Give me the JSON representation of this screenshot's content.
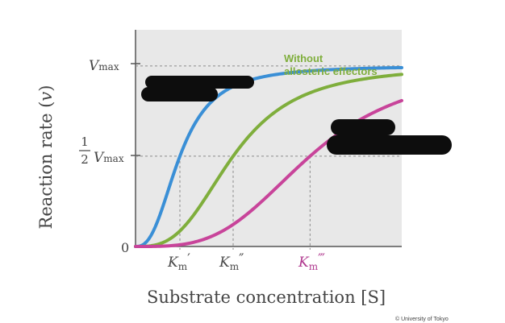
{
  "chart_data": {
    "type": "line",
    "title": "",
    "xlabel": "Substrate concentration [S]",
    "ylabel": "Reaction rate (v)",
    "y_ticks": [
      {
        "value": 1.0,
        "label": "Vmax"
      },
      {
        "value": 0.5,
        "label": "1/2 Vmax"
      },
      {
        "value": 0.0,
        "label": "0"
      }
    ],
    "x_markers": [
      {
        "label": "Km′",
        "value": 1.5,
        "color": "#4a4a4a"
      },
      {
        "label": "Km″",
        "value": 3.3,
        "color": "#4a4a4a"
      },
      {
        "label": "Km‴",
        "value": 5.9,
        "color": "#b0398f"
      }
    ],
    "xlim": [
      0,
      9
    ],
    "ylim": [
      0,
      1.2
    ],
    "grid": false,
    "series": [
      {
        "name": "",
        "color": "#3a8fd6",
        "km": 1.5,
        "hill": 2.6
      },
      {
        "name": "Without allosteric effectors",
        "color": "#7fae3c",
        "km": 3.3,
        "hill": 3.0
      },
      {
        "name": "",
        "color": "#c8449a",
        "km": 5.9,
        "hill": 3.4
      }
    ],
    "annotations": [
      {
        "text": "Without allosteric effectors",
        "color": "#7fae3c"
      }
    ],
    "redactions": 2
  },
  "credit": "© University of Tokyo"
}
